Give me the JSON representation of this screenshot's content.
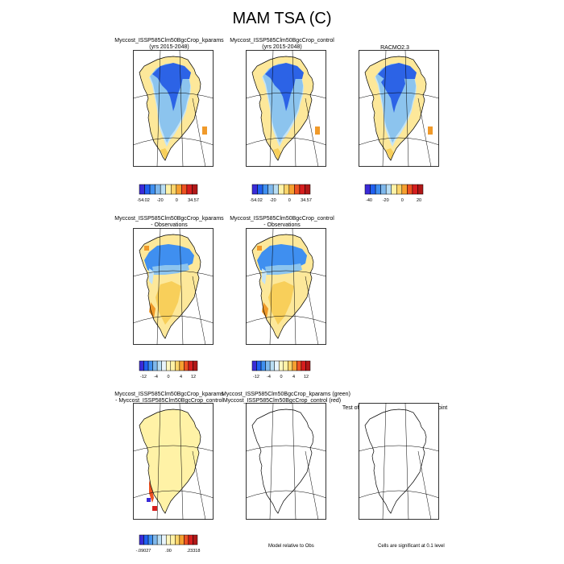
{
  "figure": {
    "title": "MAM TSA (C)",
    "colors": {
      "abs_scale": [
        "#3a2bd8",
        "#2060f0",
        "#3f8ff0",
        "#7fb8ec",
        "#b8ddf3",
        "#fff2a6",
        "#fbd46a",
        "#f6a030",
        "#ee5222",
        "#d61e1e",
        "#b01818"
      ],
      "diff_scale": [
        "#3a2bd8",
        "#2060f0",
        "#3f8ff0",
        "#7fb8ec",
        "#b8ddf3",
        "#e8f4fb",
        "#fff7c0",
        "#fff2a6",
        "#fbd46a",
        "#f6a030",
        "#ee5222",
        "#d61e1e",
        "#b01818"
      ],
      "deep_cold": "#2c63e6",
      "cold": "#3f8ff0",
      "mid": "#8cc4ee",
      "light": "#c5e4f5",
      "warm": "#fde89a",
      "warmer": "#f8cf5a",
      "orange": "#f09a2a"
    }
  },
  "chart_data": [
    {
      "type": "heatmap",
      "row": 1,
      "col": 1,
      "title_lines": [
        "Myccost_ISSP585Clm50BgcCrop_kparams",
        "(yrs 2015-2048)"
      ],
      "colorbar_ticks": [
        "-54.02",
        "-20",
        "0",
        "34.57"
      ],
      "colorbar_range": [
        -54.02,
        34.57
      ]
    },
    {
      "type": "heatmap",
      "row": 1,
      "col": 2,
      "title_lines": [
        "Myccost_ISSP585Clm50BgcCrop_control",
        "(yrs 2015-2048)"
      ],
      "colorbar_ticks": [
        "-54.02",
        "-20",
        "0",
        "34.57"
      ],
      "colorbar_range": [
        -54.02,
        34.57
      ]
    },
    {
      "type": "heatmap",
      "row": 1,
      "col": 3,
      "title_lines": [
        "RACMO2.3"
      ],
      "colorbar_ticks": [
        "-40",
        "-20",
        "0",
        "20"
      ]
    },
    {
      "type": "heatmap",
      "row": 2,
      "col": 1,
      "title_lines": [
        "Myccost_ISSP585Clm50BgcCrop_kparams",
        "- Observations"
      ],
      "colorbar_ticks": [
        "-12",
        "-4",
        "0",
        "4",
        "12"
      ]
    },
    {
      "type": "heatmap",
      "row": 2,
      "col": 2,
      "title_lines": [
        "Myccost_ISSP585Clm50BgcCrop_control",
        "- Observations"
      ],
      "colorbar_ticks": [
        "-12",
        "-4",
        "0",
        "4",
        "12"
      ]
    },
    {
      "type": "heatmap",
      "row": 3,
      "col": 1,
      "title_lines": [
        "Myccost_ISSP585Clm50BgcCrop_kparams",
        "- Myccost_ISSP585Clm50BgcCrop_control"
      ],
      "colorbar_ticks": [
        "-.09027",
        ".00",
        ".23318"
      ],
      "colorbar_range": [
        -0.09027,
        0.23318
      ]
    },
    {
      "type": "heatmap",
      "row": 3,
      "col": 2,
      "title_lines": [
        "Myccost_ISSP585Clm50BgcCrop_kparams (green)",
        "Myccost_ISSP585Clm50BgcCrop_control (red)"
      ],
      "note": "Model relative to Obs"
    },
    {
      "type": "heatmap",
      "row": 3,
      "col": 3,
      "title_lines": [
        "Test of two Case means at each grid point"
      ],
      "note": "Cells are significant at 0.1 level"
    }
  ]
}
